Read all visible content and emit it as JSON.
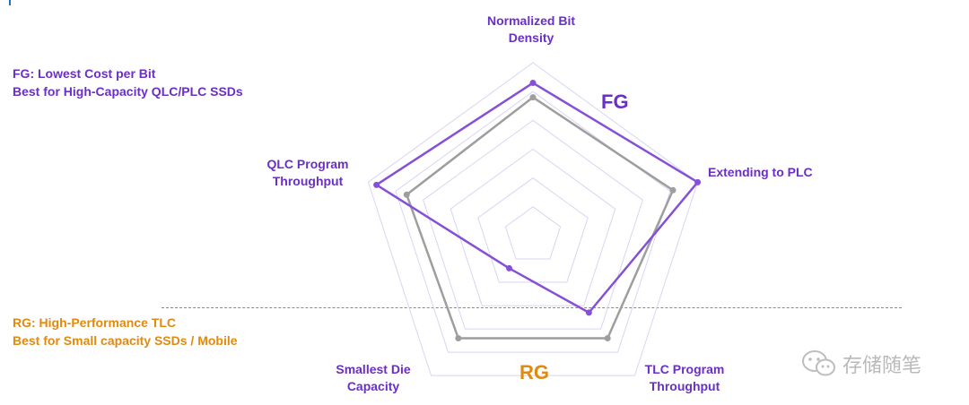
{
  "notes": {
    "fg": [
      "FG: Lowest Cost per Bit",
      "Best for High-Capacity QLC/PLC SSDs"
    ],
    "rg": [
      "RG: High-Performance TLC",
      "Best for Small  capacity SSDs / Mobile"
    ]
  },
  "watermark": {
    "text": "存储随笔",
    "icon": "wechat-icon"
  },
  "colors": {
    "fg": "#8650d6",
    "rg": "#9e9e9e",
    "grid": "#d8d4f4",
    "axis_text": "#6a2fc4",
    "rg_text": "#e08a10",
    "divider": "#9b6fd6"
  },
  "chart_data": {
    "type": "radar",
    "axes": [
      [
        "Normalized Bit",
        "Density"
      ],
      [
        "Extending to PLC"
      ],
      [
        "TLC Program",
        "Throughput"
      ],
      [
        "Smallest Die",
        "Capacity"
      ],
      [
        "QLC Program",
        "Throughput"
      ]
    ],
    "levels": 6,
    "range": [
      0,
      6
    ],
    "grid": true,
    "series": [
      {
        "name": "FG",
        "values": [
          5.3,
          6.0,
          3.3,
          1.4,
          5.7
        ]
      },
      {
        "name": "RG",
        "values": [
          4.8,
          5.1,
          4.4,
          4.4,
          4.6
        ]
      }
    ]
  }
}
